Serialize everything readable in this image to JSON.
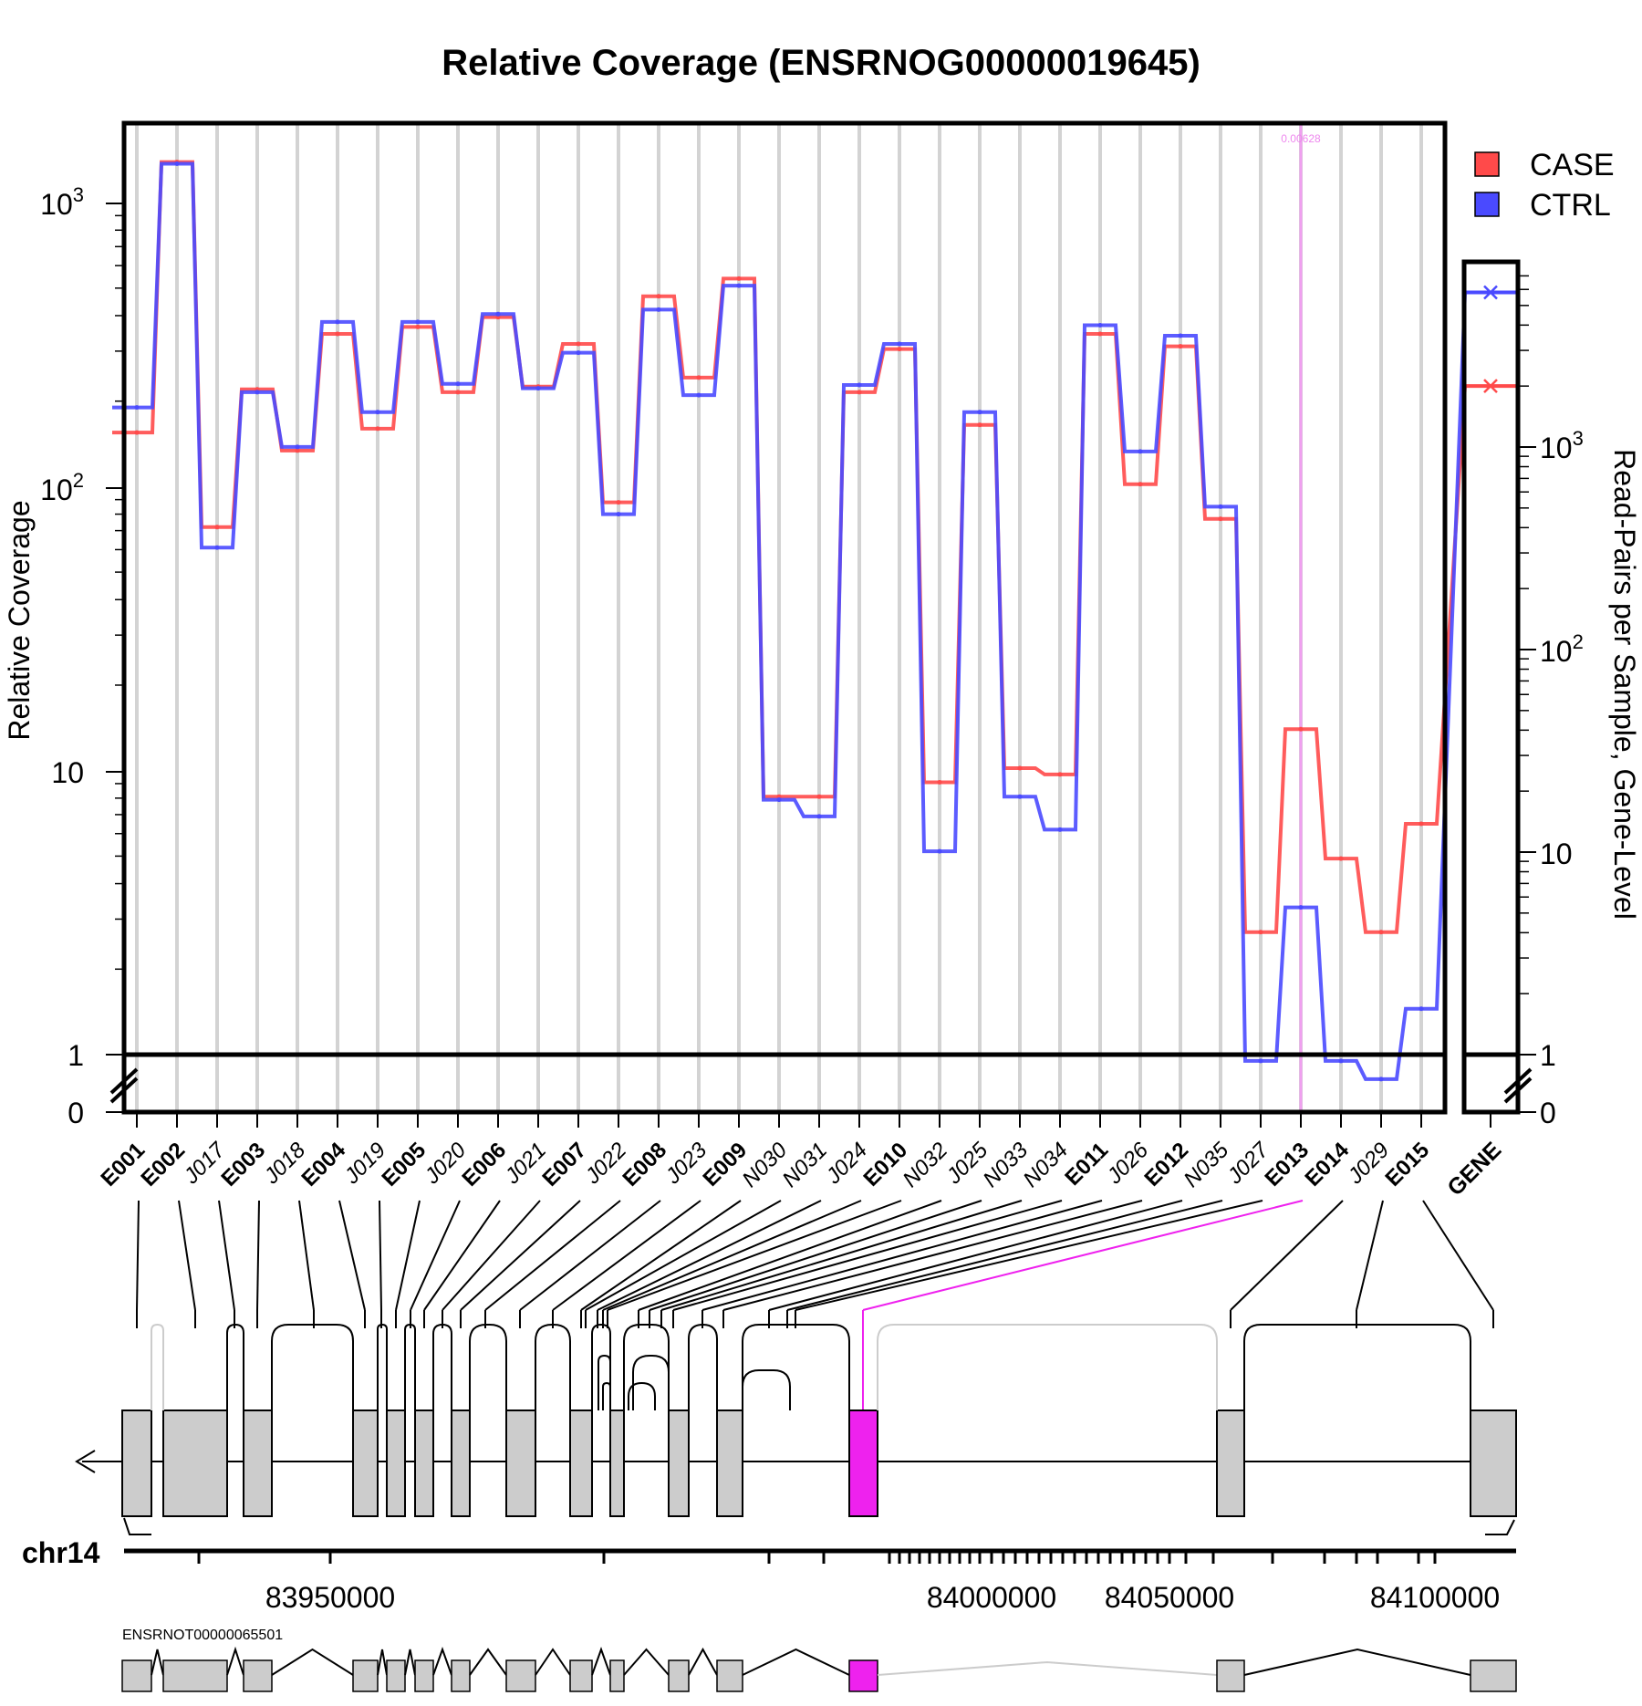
{
  "chart_data": {
    "type": "line",
    "title": "Relative Coverage (ENSRNOG00000019645)",
    "ylabel": "Relative Coverage",
    "ylabel_right": "Read-Pairs per Sample, Gene-Level",
    "y_scale": "log (with 0 break)",
    "y_ticks": [
      "0",
      "1",
      "10",
      "10^2",
      "10^3"
    ],
    "y_right_ticks": [
      "0",
      "1",
      "10",
      "10^2",
      "10^3"
    ],
    "grid": "vertical lines at each feature",
    "legend_position": "top-right",
    "categories": [
      "E001",
      "E002",
      "J017",
      "E003",
      "J018",
      "E004",
      "J019",
      "E005",
      "J020",
      "E006",
      "J021",
      "E007",
      "J022",
      "E008",
      "J023",
      "E009",
      "N030",
      "N031",
      "J024",
      "E010",
      "N032",
      "J025",
      "N033",
      "N034",
      "E011",
      "J026",
      "E012",
      "N035",
      "J027",
      "E013",
      "E014",
      "J029",
      "E015"
    ],
    "category_style": [
      "bold",
      "bold",
      "italic",
      "bold",
      "italic",
      "bold",
      "italic",
      "bold",
      "italic",
      "bold",
      "italic",
      "bold",
      "italic",
      "bold",
      "italic",
      "bold",
      "italic",
      "italic",
      "italic",
      "bold",
      "italic",
      "italic",
      "italic",
      "italic",
      "bold",
      "italic",
      "bold",
      "italic",
      "italic",
      "bold",
      "bold",
      "italic",
      "bold"
    ],
    "series": [
      {
        "name": "CASE",
        "color": "#ff4a4a",
        "values": [
          155,
          1390,
          72,
          220,
          134,
          345,
          160,
          365,
          215,
          395,
          225,
          318,
          88,
          468,
          242,
          540,
          8.1,
          8.1,
          215,
          305,
          9.1,
          165,
          10.2,
          9.7,
          345,
          102,
          312,
          77,
          2.7,
          14,
          4.9,
          2.7,
          6.5
        ],
        "gene": 2000
      },
      {
        "name": "CTRL",
        "color": "#4a4aff",
        "values": [
          190,
          1370,
          61,
          215,
          138,
          380,
          183,
          380,
          230,
          405,
          222,
          296,
          80,
          420,
          210,
          510,
          7.9,
          6.9,
          228,
          318,
          5.2,
          183,
          8.1,
          6.2,
          370,
          133,
          340,
          85,
          0.95,
          3.3,
          0.95,
          0.82,
          1.45
        ],
        "gene": 5800
      }
    ],
    "highlight": {
      "feature": "E013",
      "label": "0.00628",
      "color": "#ff00ff"
    }
  },
  "gene_model": {
    "chromosome": "chr14",
    "genome_ticks": [
      "83950000",
      "84000000",
      "84050000",
      "84100000"
    ],
    "transcript_label": "ENSRNOT00000065501",
    "exon_fill": "#cccccc",
    "highlight_fill": "#ee22ee"
  },
  "labels": {
    "gene_column": "GENE",
    "break_top": "1",
    "break_bottom": "0"
  }
}
